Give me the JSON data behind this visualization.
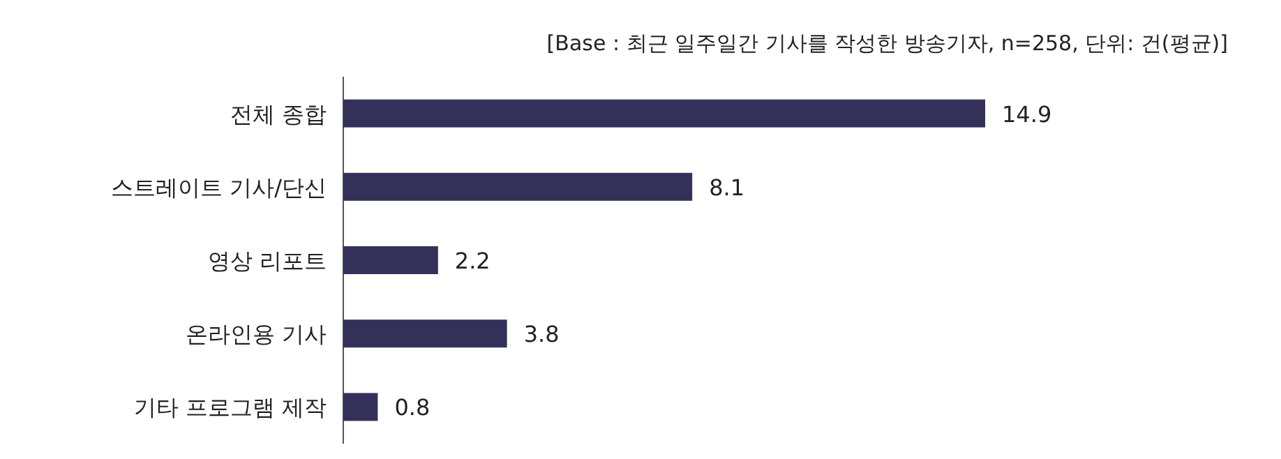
{
  "chart_data": {
    "type": "bar",
    "orientation": "horizontal",
    "annotations": [
      "[Base : 최근 일주일간 기사를 작성한 방송기자, n=258, 단위: 건(평균)]"
    ],
    "categories": [
      "전체 종합",
      "스트레이트 기사/단신",
      "영상 리포트",
      "온라인용 기사",
      "기타 프로그램 제작"
    ],
    "values": [
      14.9,
      8.1,
      2.2,
      3.8,
      0.8
    ],
    "color": "#33305a",
    "data_labels": true
  }
}
